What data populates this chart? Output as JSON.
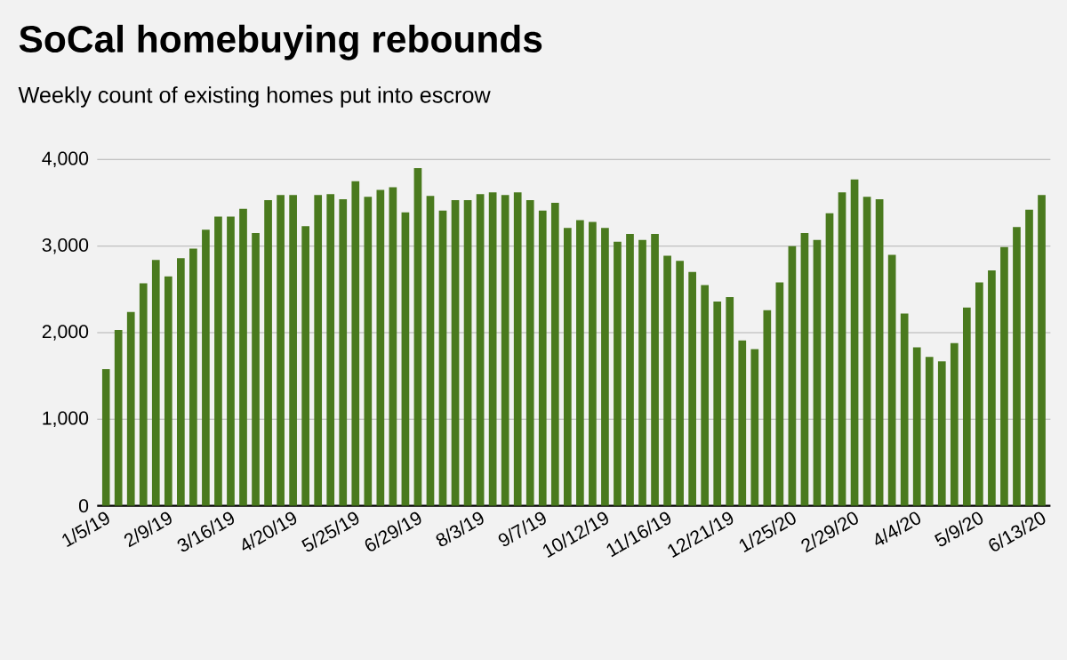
{
  "chart_data": {
    "type": "bar",
    "title": "SoCal homebuying rebounds",
    "subtitle": "Weekly count of existing homes put into escrow",
    "categories": [
      "1/5/19",
      null,
      null,
      null,
      null,
      "2/9/19",
      null,
      null,
      null,
      null,
      "3/16/19",
      null,
      null,
      null,
      null,
      "4/20/19",
      null,
      null,
      null,
      null,
      "5/25/19",
      null,
      null,
      null,
      null,
      "6/29/19",
      null,
      null,
      null,
      null,
      "8/3/19",
      null,
      null,
      null,
      null,
      "9/7/19",
      null,
      null,
      null,
      null,
      "10/12/19",
      null,
      null,
      null,
      null,
      "11/16/19",
      null,
      null,
      null,
      null,
      "12/21/19",
      null,
      null,
      null,
      null,
      "1/25/20",
      null,
      null,
      null,
      null,
      "2/29/20",
      null,
      null,
      null,
      null,
      "4/4/20",
      null,
      null,
      null,
      null,
      "5/9/20",
      null,
      null,
      null,
      null,
      "6/13/20"
    ],
    "values": [
      1580,
      2030,
      2240,
      2570,
      2840,
      2650,
      2860,
      2970,
      3190,
      3340,
      3340,
      3430,
      3150,
      3530,
      3590,
      3590,
      3230,
      3590,
      3600,
      3540,
      3750,
      3570,
      3650,
      3680,
      3390,
      3900,
      3580,
      3410,
      3530,
      3530,
      3600,
      3620,
      3590,
      3620,
      3530,
      3410,
      3500,
      3210,
      3300,
      3280,
      3210,
      3050,
      3140,
      3070,
      3140,
      2890,
      2830,
      2700,
      2550,
      2360,
      2410,
      1910,
      1810,
      2260,
      2580,
      3000,
      3150,
      3070,
      3380,
      3620,
      3770,
      3570,
      3540,
      2900,
      2220,
      1830,
      1720,
      1670,
      1880,
      2290,
      2580,
      2720,
      2990,
      3220,
      3420,
      3590
    ],
    "color": "#4a7a1e",
    "ylim": [
      0,
      4000
    ],
    "yticks": [
      0,
      {
        "value": 1000,
        "label": "1,000"
      },
      {
        "value": 2000,
        "label": "2,000"
      },
      {
        "value": 3000,
        "label": "3,000"
      },
      {
        "value": 4000,
        "label": "4,000"
      }
    ],
    "grid": "y"
  }
}
